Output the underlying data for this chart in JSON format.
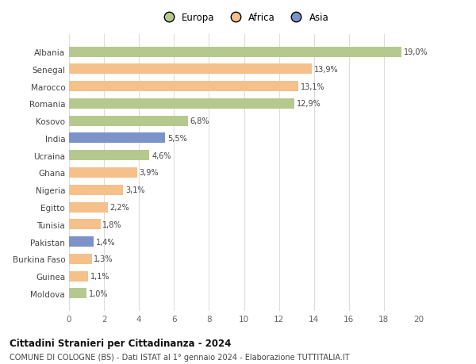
{
  "categories": [
    "Albania",
    "Senegal",
    "Marocco",
    "Romania",
    "Kosovo",
    "India",
    "Ucraina",
    "Ghana",
    "Nigeria",
    "Egitto",
    "Tunisia",
    "Pakistan",
    "Burkina Faso",
    "Guinea",
    "Moldova"
  ],
  "values": [
    19.0,
    13.9,
    13.1,
    12.9,
    6.8,
    5.5,
    4.6,
    3.9,
    3.1,
    2.2,
    1.8,
    1.4,
    1.3,
    1.1,
    1.0
  ],
  "labels": [
    "19,0%",
    "13,9%",
    "13,1%",
    "12,9%",
    "6,8%",
    "5,5%",
    "4,6%",
    "3,9%",
    "3,1%",
    "2,2%",
    "1,8%",
    "1,4%",
    "1,3%",
    "1,1%",
    "1,0%"
  ],
  "colors": [
    "#b5c98e",
    "#f5c08a",
    "#f5c08a",
    "#b5c98e",
    "#b5c98e",
    "#7b93c8",
    "#b5c98e",
    "#f5c08a",
    "#f5c08a",
    "#f5c08a",
    "#f5c08a",
    "#7b93c8",
    "#f5c08a",
    "#f5c08a",
    "#b5c98e"
  ],
  "legend_colors": [
    "#b5c98e",
    "#f5c08a",
    "#7b93c8"
  ],
  "legend_labels": [
    "Europa",
    "Africa",
    "Asia"
  ],
  "xlim": [
    0,
    20
  ],
  "xticks": [
    0,
    2,
    4,
    6,
    8,
    10,
    12,
    14,
    16,
    18,
    20
  ],
  "title": "Cittadini Stranieri per Cittadinanza - 2024",
  "subtitle": "COMUNE DI COLOGNE (BS) - Dati ISTAT al 1° gennaio 2024 - Elaborazione TUTTITALIA.IT",
  "background_color": "#ffffff",
  "grid_color": "#dddddd",
  "bar_height": 0.6
}
